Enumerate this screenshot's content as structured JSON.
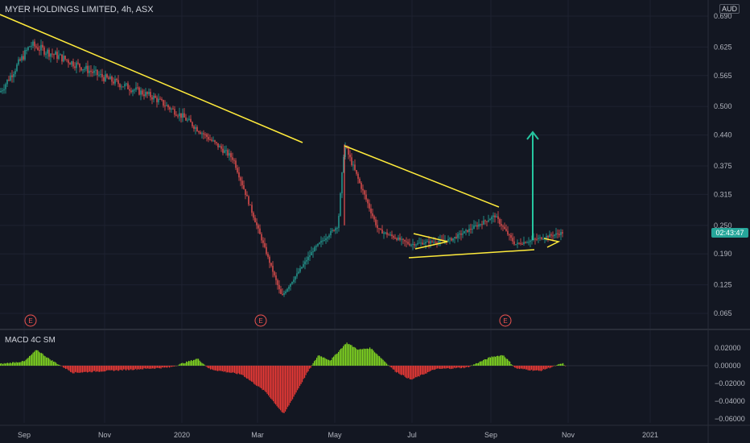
{
  "header": {
    "symbol_title": "MYER HOLDINGS LIMITED, 4h, ASX",
    "currency": "AUD"
  },
  "price_badge": "02:43:47",
  "indicator": {
    "name": "MACD 4C SM"
  },
  "x_axis_labels": [
    "Sep",
    "Nov",
    "2020",
    "Mar",
    "May",
    "Jul",
    "Sep",
    "Nov",
    "2021"
  ],
  "price_axis_labels": [
    "0.690",
    "0.625",
    "0.565",
    "0.500",
    "0.440",
    "0.375",
    "0.315",
    "0.250",
    "0.190",
    "0.125",
    "0.065"
  ],
  "macd_axis_labels": [
    "0.02000",
    "0.00000",
    "−0.02000",
    "−0.04000",
    "−0.06000"
  ],
  "earnings_markers": [
    "E",
    "E",
    "E"
  ],
  "colors": {
    "background": "#131722",
    "up": "#26a69a",
    "down": "#ef5350",
    "trendline": "#ffeb3b",
    "arrow": "#26c6a0",
    "macd_pos": "#7fd321",
    "macd_neg": "#e53935"
  },
  "chart_data": {
    "type": "candlestick",
    "title": "MYER HOLDINGS LIMITED, 4h, ASX",
    "ylim": [
      0.05,
      0.72
    ],
    "timeline": [
      "Sep",
      "Nov",
      "2020",
      "Mar",
      "May",
      "Jul",
      "Sep",
      "Nov",
      "2021"
    ],
    "approx_close_path": [
      {
        "t": "Aug",
        "price": 0.53
      },
      {
        "t": "early Sep",
        "price": 0.63
      },
      {
        "t": "Oct",
        "price": 0.6
      },
      {
        "t": "Nov",
        "price": 0.56
      },
      {
        "t": "Dec",
        "price": 0.52
      },
      {
        "t": "2020",
        "price": 0.48
      },
      {
        "t": "Feb",
        "price": 0.39
      },
      {
        "t": "Mar",
        "price": 0.1
      },
      {
        "t": "Apr",
        "price": 0.2
      },
      {
        "t": "May",
        "price": 0.25
      },
      {
        "t": "early May spike",
        "price": 0.42
      },
      {
        "t": "Jun",
        "price": 0.24
      },
      {
        "t": "Jul",
        "price": 0.21
      },
      {
        "t": "Aug",
        "price": 0.22
      },
      {
        "t": "Sep",
        "price": 0.27
      },
      {
        "t": "Oct",
        "price": 0.21
      },
      {
        "t": "late Oct",
        "price": 0.235
      }
    ],
    "macd_histogram_range": [
      -0.06,
      0.02
    ]
  }
}
